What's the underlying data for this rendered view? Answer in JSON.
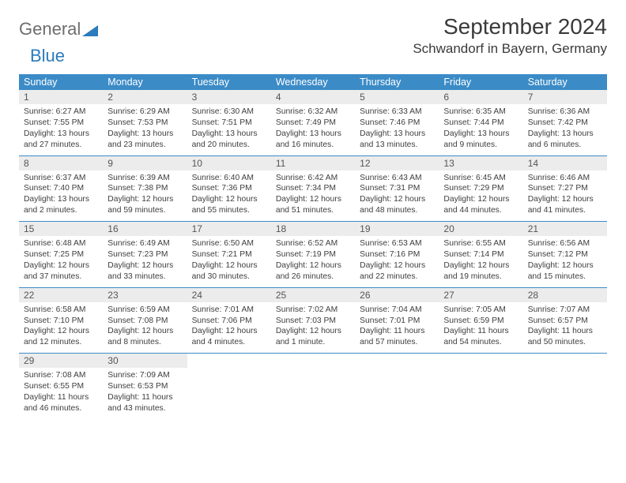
{
  "logo": {
    "word1": "General",
    "word2": "Blue"
  },
  "title": "September 2024",
  "location": "Schwandorf in Bayern, Germany",
  "colors": {
    "header_bg": "#3b8bc7",
    "header_text": "#ffffff",
    "daynum_bg": "#ececec",
    "body_text": "#3e3e3e",
    "logo_gray": "#6d6d6d",
    "logo_blue": "#2b7bbd"
  },
  "day_names": [
    "Sunday",
    "Monday",
    "Tuesday",
    "Wednesday",
    "Thursday",
    "Friday",
    "Saturday"
  ],
  "weeks": [
    [
      {
        "n": "1",
        "sr": "Sunrise: 6:27 AM",
        "ss": "Sunset: 7:55 PM",
        "dl": "Daylight: 13 hours and 27 minutes."
      },
      {
        "n": "2",
        "sr": "Sunrise: 6:29 AM",
        "ss": "Sunset: 7:53 PM",
        "dl": "Daylight: 13 hours and 23 minutes."
      },
      {
        "n": "3",
        "sr": "Sunrise: 6:30 AM",
        "ss": "Sunset: 7:51 PM",
        "dl": "Daylight: 13 hours and 20 minutes."
      },
      {
        "n": "4",
        "sr": "Sunrise: 6:32 AM",
        "ss": "Sunset: 7:49 PM",
        "dl": "Daylight: 13 hours and 16 minutes."
      },
      {
        "n": "5",
        "sr": "Sunrise: 6:33 AM",
        "ss": "Sunset: 7:46 PM",
        "dl": "Daylight: 13 hours and 13 minutes."
      },
      {
        "n": "6",
        "sr": "Sunrise: 6:35 AM",
        "ss": "Sunset: 7:44 PM",
        "dl": "Daylight: 13 hours and 9 minutes."
      },
      {
        "n": "7",
        "sr": "Sunrise: 6:36 AM",
        "ss": "Sunset: 7:42 PM",
        "dl": "Daylight: 13 hours and 6 minutes."
      }
    ],
    [
      {
        "n": "8",
        "sr": "Sunrise: 6:37 AM",
        "ss": "Sunset: 7:40 PM",
        "dl": "Daylight: 13 hours and 2 minutes."
      },
      {
        "n": "9",
        "sr": "Sunrise: 6:39 AM",
        "ss": "Sunset: 7:38 PM",
        "dl": "Daylight: 12 hours and 59 minutes."
      },
      {
        "n": "10",
        "sr": "Sunrise: 6:40 AM",
        "ss": "Sunset: 7:36 PM",
        "dl": "Daylight: 12 hours and 55 minutes."
      },
      {
        "n": "11",
        "sr": "Sunrise: 6:42 AM",
        "ss": "Sunset: 7:34 PM",
        "dl": "Daylight: 12 hours and 51 minutes."
      },
      {
        "n": "12",
        "sr": "Sunrise: 6:43 AM",
        "ss": "Sunset: 7:31 PM",
        "dl": "Daylight: 12 hours and 48 minutes."
      },
      {
        "n": "13",
        "sr": "Sunrise: 6:45 AM",
        "ss": "Sunset: 7:29 PM",
        "dl": "Daylight: 12 hours and 44 minutes."
      },
      {
        "n": "14",
        "sr": "Sunrise: 6:46 AM",
        "ss": "Sunset: 7:27 PM",
        "dl": "Daylight: 12 hours and 41 minutes."
      }
    ],
    [
      {
        "n": "15",
        "sr": "Sunrise: 6:48 AM",
        "ss": "Sunset: 7:25 PM",
        "dl": "Daylight: 12 hours and 37 minutes."
      },
      {
        "n": "16",
        "sr": "Sunrise: 6:49 AM",
        "ss": "Sunset: 7:23 PM",
        "dl": "Daylight: 12 hours and 33 minutes."
      },
      {
        "n": "17",
        "sr": "Sunrise: 6:50 AM",
        "ss": "Sunset: 7:21 PM",
        "dl": "Daylight: 12 hours and 30 minutes."
      },
      {
        "n": "18",
        "sr": "Sunrise: 6:52 AM",
        "ss": "Sunset: 7:19 PM",
        "dl": "Daylight: 12 hours and 26 minutes."
      },
      {
        "n": "19",
        "sr": "Sunrise: 6:53 AM",
        "ss": "Sunset: 7:16 PM",
        "dl": "Daylight: 12 hours and 22 minutes."
      },
      {
        "n": "20",
        "sr": "Sunrise: 6:55 AM",
        "ss": "Sunset: 7:14 PM",
        "dl": "Daylight: 12 hours and 19 minutes."
      },
      {
        "n": "21",
        "sr": "Sunrise: 6:56 AM",
        "ss": "Sunset: 7:12 PM",
        "dl": "Daylight: 12 hours and 15 minutes."
      }
    ],
    [
      {
        "n": "22",
        "sr": "Sunrise: 6:58 AM",
        "ss": "Sunset: 7:10 PM",
        "dl": "Daylight: 12 hours and 12 minutes."
      },
      {
        "n": "23",
        "sr": "Sunrise: 6:59 AM",
        "ss": "Sunset: 7:08 PM",
        "dl": "Daylight: 12 hours and 8 minutes."
      },
      {
        "n": "24",
        "sr": "Sunrise: 7:01 AM",
        "ss": "Sunset: 7:06 PM",
        "dl": "Daylight: 12 hours and 4 minutes."
      },
      {
        "n": "25",
        "sr": "Sunrise: 7:02 AM",
        "ss": "Sunset: 7:03 PM",
        "dl": "Daylight: 12 hours and 1 minute."
      },
      {
        "n": "26",
        "sr": "Sunrise: 7:04 AM",
        "ss": "Sunset: 7:01 PM",
        "dl": "Daylight: 11 hours and 57 minutes."
      },
      {
        "n": "27",
        "sr": "Sunrise: 7:05 AM",
        "ss": "Sunset: 6:59 PM",
        "dl": "Daylight: 11 hours and 54 minutes."
      },
      {
        "n": "28",
        "sr": "Sunrise: 7:07 AM",
        "ss": "Sunset: 6:57 PM",
        "dl": "Daylight: 11 hours and 50 minutes."
      }
    ],
    [
      {
        "n": "29",
        "sr": "Sunrise: 7:08 AM",
        "ss": "Sunset: 6:55 PM",
        "dl": "Daylight: 11 hours and 46 minutes."
      },
      {
        "n": "30",
        "sr": "Sunrise: 7:09 AM",
        "ss": "Sunset: 6:53 PM",
        "dl": "Daylight: 11 hours and 43 minutes."
      },
      {
        "empty": true
      },
      {
        "empty": true
      },
      {
        "empty": true
      },
      {
        "empty": true
      },
      {
        "empty": true
      }
    ]
  ]
}
